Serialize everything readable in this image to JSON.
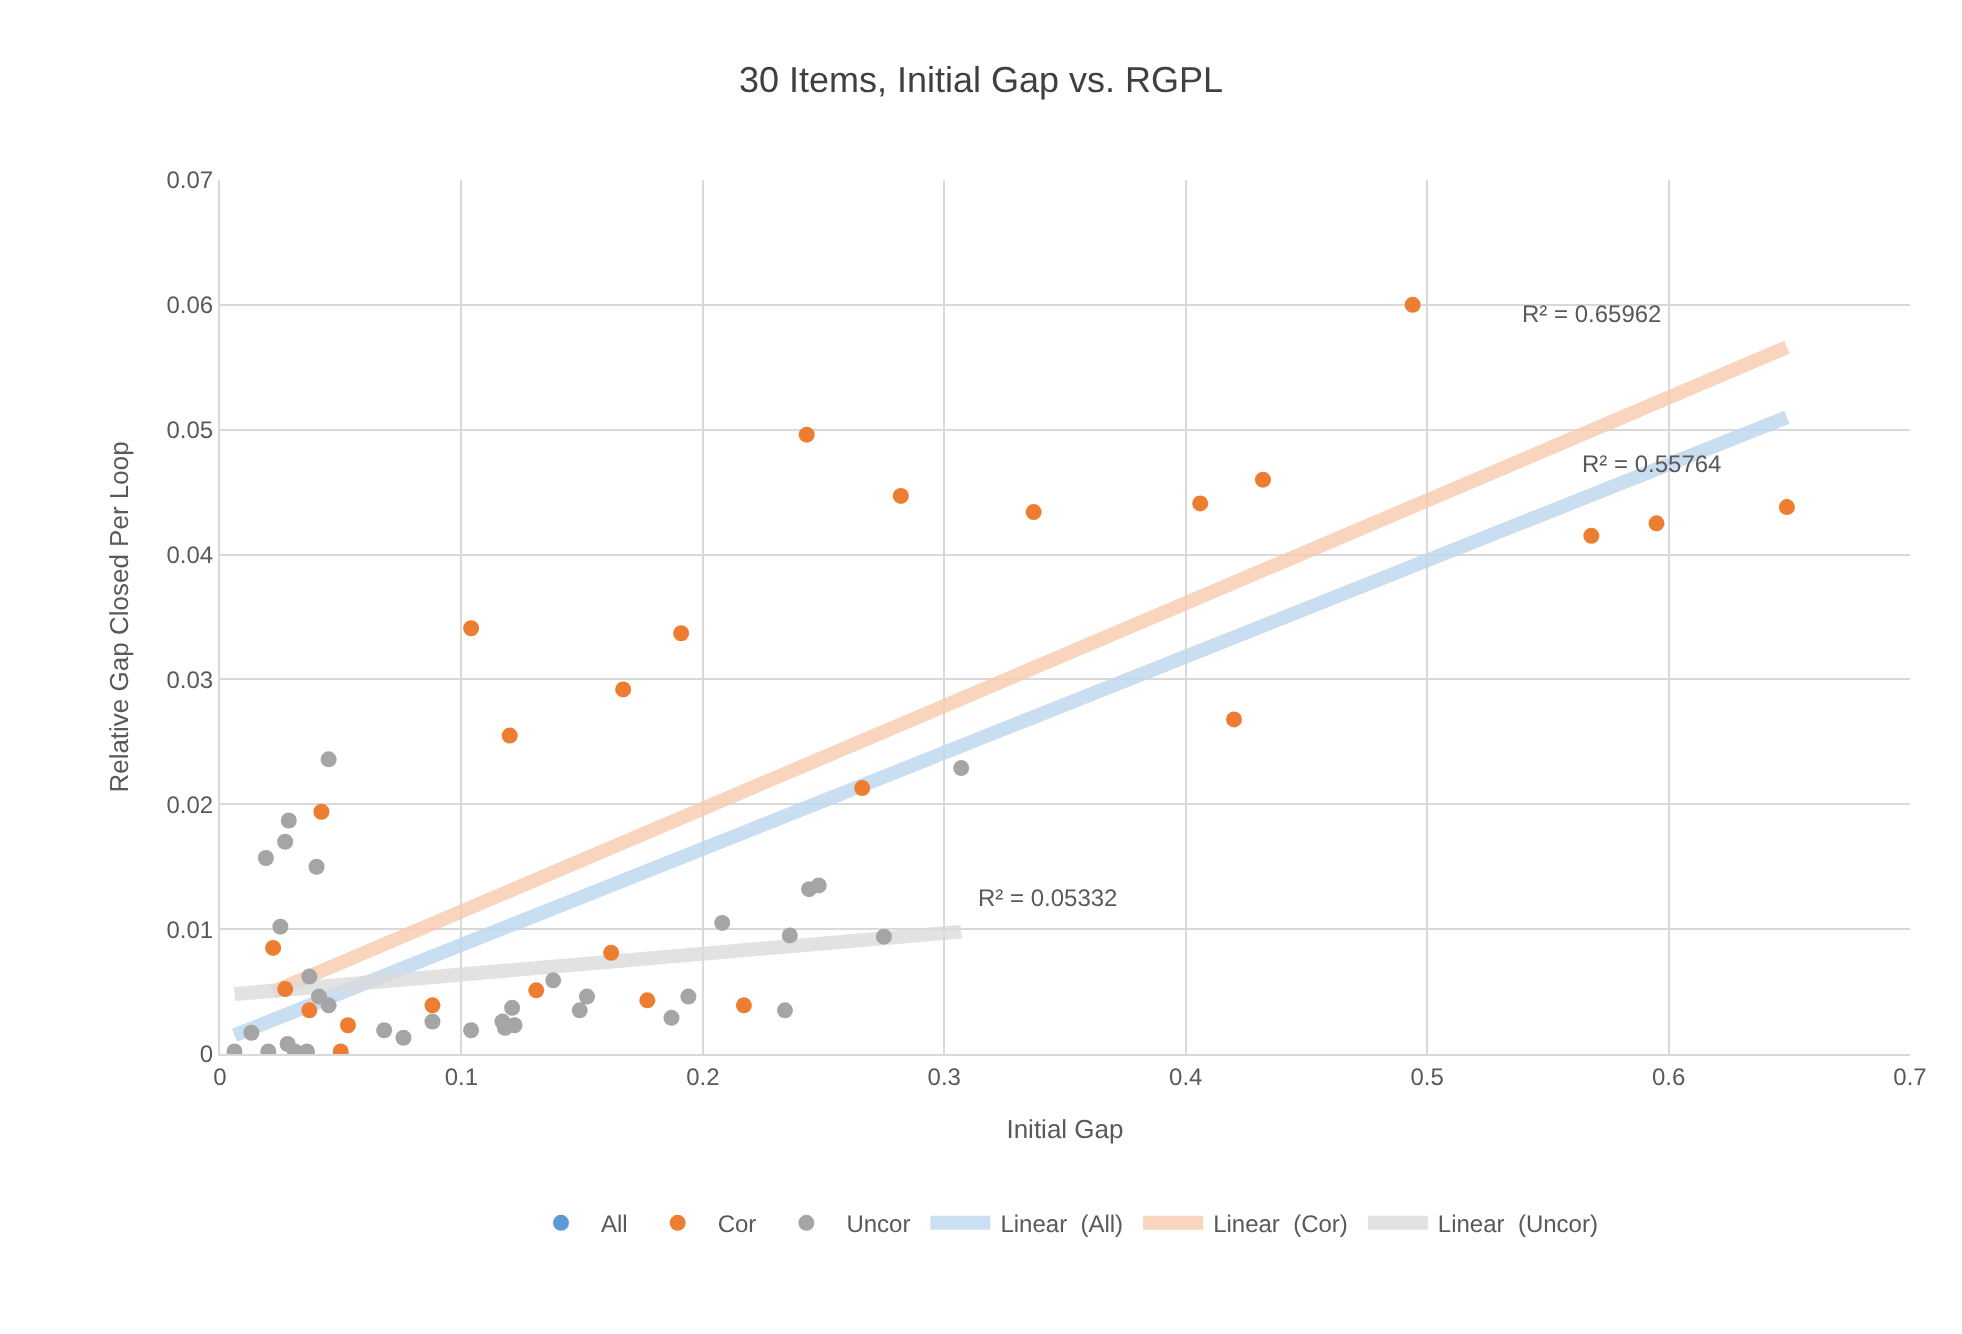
{
  "chart_data": {
    "type": "scatter",
    "title": "30 Items, Initial Gap vs. RGPL",
    "xlabel": "Initial Gap",
    "ylabel": "Relative Gap Closed Per Loop",
    "xlim": [
      0,
      0.7
    ],
    "xticks": [
      0,
      0.1,
      0.2,
      0.3,
      0.4,
      0.5,
      0.6,
      0.7
    ],
    "ylim": [
      0,
      0.07
    ],
    "yticks": [
      0,
      0.01,
      0.02,
      0.03,
      0.04,
      0.05,
      0.06,
      0.07
    ],
    "grid": true,
    "legend": "bottom",
    "marker": "circle",
    "series": [
      {
        "name": "All",
        "color": "#5b9bd5"
      },
      {
        "name": "Cor",
        "color": "#ed7d31",
        "x": [
          0.243,
          0.282,
          0.337,
          0.406,
          0.432,
          0.494,
          0.568,
          0.595,
          0.649,
          0.42,
          0.266,
          0.104,
          0.191,
          0.167,
          0.12,
          0.042,
          0.022,
          0.162,
          0.027,
          0.037,
          0.088,
          0.053,
          0.05,
          0.131,
          0.177,
          0.217
        ],
        "values": [
          0.0496,
          0.0447,
          0.0434,
          0.0441,
          0.046,
          0.06,
          0.0415,
          0.0425,
          0.0438,
          0.0268,
          0.0213,
          0.0341,
          0.0337,
          0.0292,
          0.0255,
          0.0194,
          0.0085,
          0.0081,
          0.0052,
          0.0035,
          0.0039,
          0.0023,
          0.0002,
          0.0051,
          0.0043,
          0.0039
        ]
      },
      {
        "name": "Uncor",
        "color": "#a5a5a5",
        "x": [
          0.307,
          0.045,
          0.0285,
          0.027,
          0.019,
          0.04,
          0.025,
          0.208,
          0.236,
          0.037,
          0.041,
          0.045,
          0.013,
          0.006,
          0.02,
          0.028,
          0.031,
          0.036,
          0.068,
          0.076,
          0.088,
          0.104,
          0.117,
          0.121,
          0.118,
          0.122,
          0.138,
          0.149,
          0.152,
          0.187,
          0.194,
          0.234,
          0.244,
          0.248,
          0.275
        ],
        "values": [
          0.0229,
          0.0236,
          0.0187,
          0.017,
          0.0157,
          0.015,
          0.0102,
          0.0105,
          0.0095,
          0.0062,
          0.0046,
          0.0039,
          0.0017,
          0.0002,
          0.0002,
          0.0008,
          0.0002,
          0.0002,
          0.0019,
          0.0013,
          0.0026,
          0.0019,
          0.0026,
          0.0037,
          0.0021,
          0.0023,
          0.0059,
          0.0035,
          0.0046,
          0.0029,
          0.0046,
          0.0035,
          0.0132,
          0.0135,
          0.0094
        ]
      },
      {
        "name": "Linear  (All)",
        "type": "line",
        "marker": "none",
        "color": "#bdd7ee",
        "x": [
          0.006,
          0.649
        ],
        "values": [
          0.0015,
          0.051
        ]
      },
      {
        "name": "Linear  (Cor)",
        "type": "line",
        "marker": "none",
        "color": "#f8cbad",
        "x": [
          0.022,
          0.649
        ],
        "values": [
          0.005,
          0.0566
        ]
      },
      {
        "name": "Linear  (Uncor)",
        "type": "line",
        "marker": "none",
        "color": "#dbdbdb",
        "x": [
          0.006,
          0.307
        ],
        "values": [
          0.0048,
          0.0098
        ]
      }
    ],
    "annotations": [
      "R² = 0.55764",
      "R² = 0.65962",
      "R² = 0.05332"
    ]
  }
}
